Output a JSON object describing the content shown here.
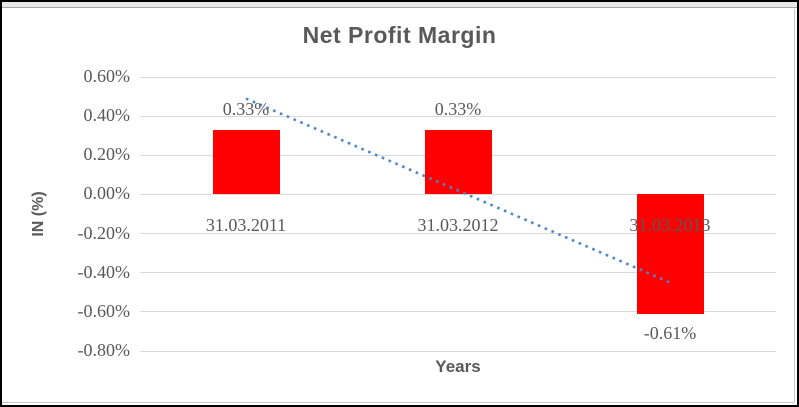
{
  "chart_data": {
    "type": "bar",
    "title": "Net Profit Margin",
    "xlabel": "Years",
    "ylabel": "IN (%)",
    "categories": [
      "31.03.2011",
      "31.03.2012",
      "31.03.2013"
    ],
    "values": [
      0.33,
      0.33,
      -0.61
    ],
    "data_labels": [
      "0.33%",
      "0.33%",
      "-0.61%"
    ],
    "unit": "percent",
    "ylim": [
      -0.8,
      0.6
    ],
    "ytick_step": 0.2,
    "ytick_labels": [
      "0.60%",
      "0.40%",
      "0.20%",
      "0.00%",
      "-0.20%",
      "-0.40%",
      "-0.60%",
      "-0.80%"
    ],
    "grid": true,
    "legend": "none",
    "bar_color": "#FF0000",
    "trendline": {
      "type": "linear",
      "style": "dotted",
      "color": "#4E86C8",
      "start_value": 0.49,
      "end_value": -0.45
    },
    "theme": {
      "text_color": "#595959",
      "gridline_color": "#D9D9D9",
      "frame_border_color": "#000000",
      "chart_border_color": "#C9C9C9",
      "top_strip_color": "#E8E8E8"
    }
  }
}
